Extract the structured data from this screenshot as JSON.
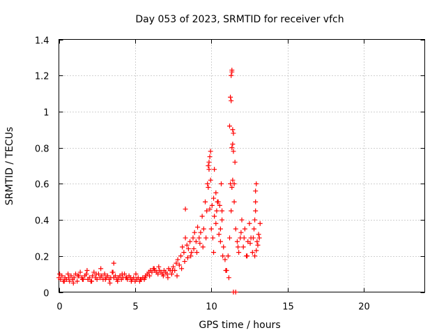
{
  "chart_data": {
    "type": "scatter",
    "title": "Day 053 of 2023, SRMTID for receiver vfch",
    "xlabel": "GPS time / hours",
    "ylabel": "SRMTID / TECUs",
    "xlim": [
      0,
      24
    ],
    "ylim": [
      0,
      1.4
    ],
    "xticks": [
      0,
      5,
      10,
      15,
      20
    ],
    "xtick_labels": [
      "0",
      "5",
      "10",
      "15",
      "20"
    ],
    "yticks": [
      0,
      0.2,
      0.4,
      0.6,
      0.8,
      1.0,
      1.2,
      1.4
    ],
    "ytick_labels": [
      "0",
      "0.2",
      "0.4",
      "0.6",
      "0.8",
      "1",
      "1.2",
      "1.4"
    ],
    "grid": true,
    "marker": "+",
    "color": "#ff0000",
    "series": [
      {
        "name": "SRMTID",
        "x": [
          0.0,
          0.1,
          0.2,
          0.3,
          0.4,
          0.5,
          0.6,
          0.7,
          0.8,
          0.9,
          1.0,
          1.1,
          1.2,
          1.3,
          1.4,
          1.5,
          1.6,
          1.7,
          1.8,
          1.9,
          2.0,
          2.1,
          2.2,
          2.3,
          2.4,
          2.5,
          2.6,
          2.7,
          2.8,
          2.9,
          3.0,
          3.1,
          3.2,
          3.3,
          3.4,
          3.5,
          3.6,
          3.7,
          3.8,
          3.9,
          4.0,
          4.1,
          4.2,
          4.3,
          4.4,
          4.5,
          4.6,
          4.7,
          4.8,
          4.9,
          5.0,
          5.1,
          5.2,
          5.3,
          5.4,
          5.5,
          5.6,
          5.7,
          5.8,
          5.9,
          6.0,
          6.1,
          6.2,
          6.3,
          6.4,
          6.5,
          6.6,
          6.7,
          6.8,
          6.9,
          7.0,
          7.1,
          7.2,
          7.3,
          7.4,
          7.5,
          7.6,
          7.7,
          7.8,
          7.9,
          8.0,
          8.1,
          8.2,
          8.3,
          8.4,
          8.5,
          8.6,
          8.7,
          8.8,
          8.9,
          9.0,
          9.1,
          9.2,
          9.3,
          9.4,
          9.5,
          9.6,
          9.7,
          9.8,
          9.9,
          10.0,
          10.1,
          10.2,
          10.3,
          10.4,
          10.5,
          10.6,
          10.7,
          10.8,
          10.9,
          11.0,
          11.1,
          11.2,
          11.3,
          11.4,
          11.5,
          11.6,
          11.7,
          11.8,
          11.9,
          12.0,
          12.1,
          12.2,
          12.3,
          12.4,
          12.5,
          12.6,
          12.7,
          12.8,
          12.9,
          13.0,
          13.1,
          13.2,
          0.05,
          0.35,
          0.65,
          0.95,
          1.25,
          1.55,
          1.85,
          2.15,
          2.45,
          2.75,
          3.05,
          3.35,
          3.55,
          3.85,
          4.15,
          4.45,
          4.75,
          5.05,
          5.35,
          5.65,
          5.95,
          6.25,
          6.55,
          6.85,
          7.15,
          7.45,
          7.75,
          8.05,
          8.25,
          8.45,
          8.65,
          8.85,
          9.05,
          9.25,
          9.45,
          9.65,
          9.75,
          9.85,
          9.95,
          10.15,
          10.35,
          10.55,
          10.75,
          10.95,
          11.15,
          11.25,
          11.35,
          11.45,
          11.55,
          11.75,
          11.95,
          12.15,
          12.35,
          12.55,
          12.75,
          12.85,
          12.95,
          13.05,
          13.15,
          9.8,
          9.85,
          9.9,
          9.95,
          10.05,
          10.15,
          10.2,
          10.3,
          10.45,
          10.6,
          10.65,
          10.7,
          11.2,
          11.25,
          11.3,
          11.35,
          11.35,
          11.4,
          11.4,
          11.45,
          11.5,
          11.3,
          11.35,
          12.9,
          12.95,
          12.9,
          12.85,
          3.6,
          8.3,
          11.45,
          11.6
        ],
        "y": [
          0.08,
          0.07,
          0.09,
          0.06,
          0.08,
          0.07,
          0.1,
          0.06,
          0.09,
          0.07,
          0.08,
          0.1,
          0.06,
          0.09,
          0.11,
          0.08,
          0.07,
          0.09,
          0.1,
          0.07,
          0.08,
          0.06,
          0.09,
          0.11,
          0.08,
          0.07,
          0.1,
          0.08,
          0.09,
          0.07,
          0.1,
          0.08,
          0.09,
          0.07,
          0.08,
          0.11,
          0.08,
          0.09,
          0.07,
          0.08,
          0.09,
          0.07,
          0.08,
          0.1,
          0.08,
          0.07,
          0.09,
          0.08,
          0.07,
          0.08,
          0.06,
          0.07,
          0.08,
          0.06,
          0.07,
          0.08,
          0.07,
          0.09,
          0.1,
          0.11,
          0.12,
          0.11,
          0.13,
          0.12,
          0.11,
          0.1,
          0.12,
          0.11,
          0.1,
          0.12,
          0.11,
          0.1,
          0.13,
          0.12,
          0.1,
          0.14,
          0.12,
          0.16,
          0.18,
          0.15,
          0.2,
          0.25,
          0.22,
          0.3,
          0.26,
          0.24,
          0.28,
          0.22,
          0.3,
          0.33,
          0.28,
          0.36,
          0.3,
          0.33,
          0.42,
          0.35,
          0.5,
          0.45,
          0.58,
          0.46,
          0.35,
          0.3,
          0.42,
          0.38,
          0.5,
          0.32,
          0.28,
          0.4,
          0.25,
          0.18,
          0.12,
          0.2,
          0.3,
          0.45,
          0.62,
          0.5,
          0.35,
          0.28,
          0.22,
          0.3,
          0.4,
          0.25,
          0.35,
          0.2,
          0.28,
          0.38,
          0.3,
          0.22,
          0.35,
          0.5,
          0.28,
          0.32,
          0.38,
          0.1,
          0.06,
          0.08,
          0.05,
          0.09,
          0.07,
          0.12,
          0.06,
          0.1,
          0.13,
          0.07,
          0.05,
          0.11,
          0.06,
          0.1,
          0.08,
          0.06,
          0.1,
          0.07,
          0.08,
          0.09,
          0.13,
          0.14,
          0.09,
          0.08,
          0.12,
          0.09,
          0.13,
          0.17,
          0.19,
          0.2,
          0.24,
          0.22,
          0.27,
          0.25,
          0.3,
          0.6,
          0.72,
          0.78,
          0.22,
          0.45,
          0.48,
          0.2,
          0.12,
          0.08,
          0.6,
          0.8,
          0.88,
          0.72,
          0.25,
          0.33,
          0.3,
          0.2,
          0.27,
          0.3,
          0.2,
          0.23,
          0.26,
          0.3,
          0.7,
          0.68,
          0.75,
          0.62,
          0.48,
          0.52,
          0.68,
          0.55,
          0.5,
          0.35,
          0.6,
          0.45,
          0.92,
          1.08,
          1.2,
          1.22,
          1.23,
          0.9,
          0.82,
          0.78,
          0.6,
          1.06,
          0.58,
          0.56,
          0.6,
          0.45,
          0.4,
          0.16,
          0.46,
          0.0,
          0.0
        ]
      }
    ]
  }
}
